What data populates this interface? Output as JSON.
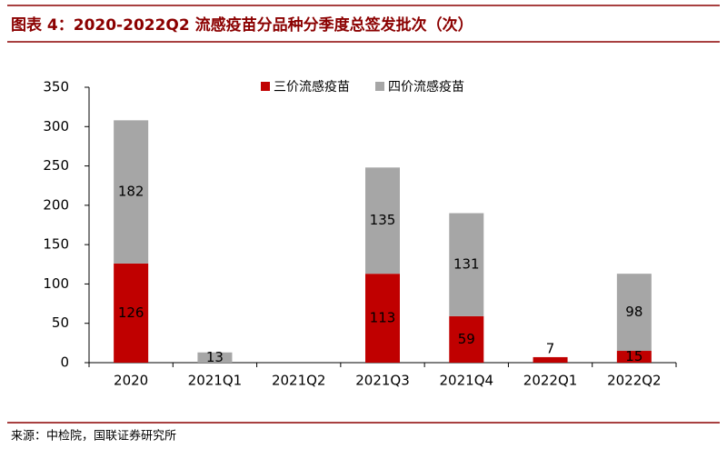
{
  "chart_data": {
    "type": "stacked-bar",
    "title": "图表 4：2020-2022Q2 流感疫苗分品种分季度总签发批次（次）",
    "source": "来源：中检院，国联证券研究所",
    "categories": [
      "2020",
      "2021Q1",
      "2021Q2",
      "2021Q3",
      "2021Q4",
      "2022Q1",
      "2022Q2"
    ],
    "series": [
      {
        "name": "三价流感疫苗",
        "color": "#c00000",
        "values": [
          126,
          null,
          null,
          113,
          59,
          7,
          15
        ]
      },
      {
        "name": "四价流感疫苗",
        "color": "#a6a6a6",
        "values": [
          182,
          13,
          null,
          135,
          131,
          null,
          98
        ]
      }
    ],
    "ylim": [
      0,
      350
    ],
    "yticks": [
      0,
      50,
      100,
      150,
      200,
      250,
      300,
      350
    ],
    "legend": "top"
  }
}
